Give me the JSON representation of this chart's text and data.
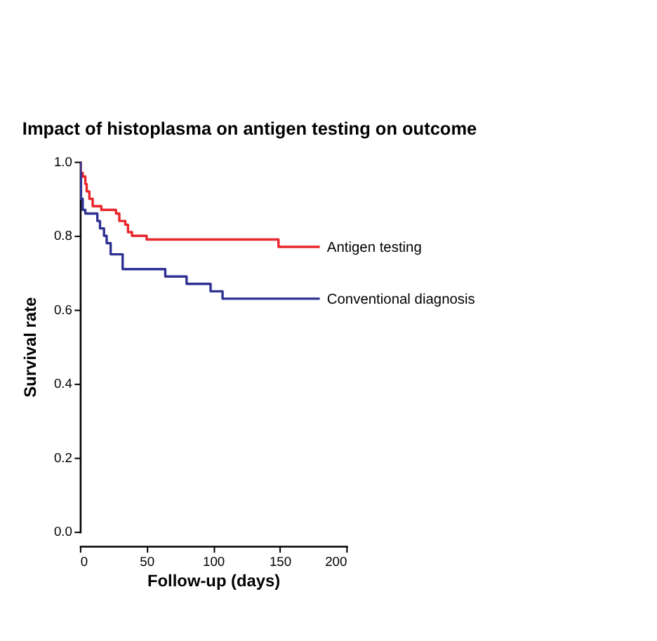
{
  "chart_data": {
    "type": "step",
    "title": "Impact of histoplasma on antigen testing on outcome",
    "xlabel": "Follow-up (days)",
    "ylabel": "Survival rate",
    "xlim": [
      0,
      200
    ],
    "xticks": [
      0,
      50,
      100,
      150,
      200
    ],
    "ylim": [
      0,
      1
    ],
    "yticks": [
      {
        "value": 0,
        "label": "0.0"
      },
      {
        "value": 0.2,
        "label": "0.2"
      },
      {
        "value": 0.4,
        "label": "0.4"
      },
      {
        "value": 0.6,
        "label": "0.6"
      },
      {
        "value": 0.8,
        "label": "0.8"
      },
      {
        "value": 1,
        "label": "1.0"
      }
    ],
    "grid": false,
    "legend": false,
    "marker": "none",
    "line_style": "solid",
    "series": [
      {
        "name": "Antigen testing",
        "color": "#e8262b",
        "x": [
          0,
          0.5,
          2,
          4,
          5,
          7,
          9.5,
          16,
          27,
          29.5,
          34,
          36,
          39,
          50,
          149,
          180
        ],
        "values": [
          1.0,
          0.97,
          0.96,
          0.94,
          0.92,
          0.9,
          0.88,
          0.87,
          0.86,
          0.84,
          0.83,
          0.81,
          0.8,
          0.79,
          0.77,
          0.77
        ]
      },
      {
        "name": "Conventional diagnosis",
        "color": "#2e3192",
        "x": [
          0,
          0.3,
          0.7,
          2,
          4,
          13,
          15,
          18,
          20,
          23,
          32,
          64,
          80,
          98,
          107,
          180
        ],
        "values": [
          1.0,
          0.97,
          0.9,
          0.87,
          0.86,
          0.84,
          0.82,
          0.8,
          0.78,
          0.75,
          0.71,
          0.69,
          0.67,
          0.65,
          0.63,
          0.63
        ]
      }
    ]
  }
}
